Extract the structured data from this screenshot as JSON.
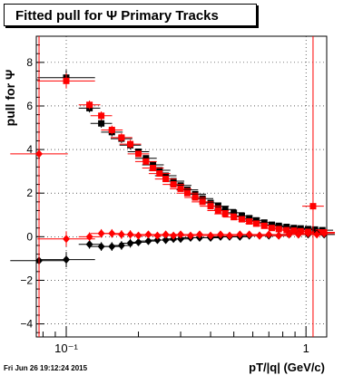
{
  "timestamp": "Fri Jun 26 19:12:24 2015",
  "chart_data": {
    "type": "scatter",
    "title": "Fitted pull for  Ψ   Primary Tracks",
    "xlabel": "pT/|q| (GeV/c)",
    "ylabel": "pull for  Ψ",
    "x_scale": "log",
    "xlim": [
      0.075,
      1.22
    ],
    "ylim": [
      -4.6,
      9.2
    ],
    "y_ticks": [
      -4,
      -2,
      0,
      2,
      4,
      6,
      8
    ],
    "x_tick_labels": [
      {
        "x": 0.1,
        "label": "10⁻¹"
      },
      {
        "x": 1,
        "label": "1"
      }
    ],
    "grid": true,
    "colors": {
      "black": "#000000",
      "red": "#ff0000"
    },
    "series": [
      {
        "color": "black",
        "marker": "square",
        "points": [
          [
            0.1,
            7.3
          ],
          [
            0.125,
            5.9
          ],
          [
            0.14,
            5.2
          ],
          [
            0.155,
            4.8
          ],
          [
            0.17,
            4.5
          ],
          [
            0.185,
            4.2
          ],
          [
            0.2,
            3.9
          ],
          [
            0.215,
            3.6
          ],
          [
            0.23,
            3.3
          ],
          [
            0.245,
            3.05
          ],
          [
            0.26,
            2.8
          ],
          [
            0.28,
            2.55
          ],
          [
            0.3,
            2.35
          ],
          [
            0.32,
            2.15
          ],
          [
            0.345,
            1.95
          ],
          [
            0.37,
            1.75
          ],
          [
            0.4,
            1.55
          ],
          [
            0.43,
            1.4
          ],
          [
            0.46,
            1.25
          ],
          [
            0.5,
            1.1
          ],
          [
            0.54,
            0.95
          ],
          [
            0.58,
            0.85
          ],
          [
            0.62,
            0.75
          ],
          [
            0.67,
            0.65
          ],
          [
            0.72,
            0.55
          ],
          [
            0.77,
            0.5
          ],
          [
            0.83,
            0.45
          ],
          [
            0.89,
            0.4
          ],
          [
            0.95,
            0.38
          ],
          [
            1.02,
            0.35
          ],
          [
            1.09,
            0.33
          ],
          [
            1.17,
            0.3
          ]
        ]
      },
      {
        "color": "red",
        "marker": "square",
        "points": [
          [
            0.1,
            7.15
          ],
          [
            0.125,
            6.05
          ],
          [
            0.14,
            5.55
          ],
          [
            0.155,
            4.9
          ],
          [
            0.17,
            4.55
          ],
          [
            0.185,
            4.25
          ],
          [
            0.2,
            3.8
          ],
          [
            0.215,
            3.45
          ],
          [
            0.23,
            3.15
          ],
          [
            0.245,
            2.9
          ],
          [
            0.26,
            2.65
          ],
          [
            0.28,
            2.4
          ],
          [
            0.3,
            2.2
          ],
          [
            0.32,
            2.0
          ],
          [
            0.345,
            1.8
          ],
          [
            0.37,
            1.6
          ],
          [
            0.4,
            1.4
          ],
          [
            0.43,
            1.2
          ],
          [
            0.46,
            1.05
          ],
          [
            0.5,
            0.9
          ],
          [
            0.54,
            0.8
          ],
          [
            0.58,
            0.7
          ],
          [
            0.62,
            0.6
          ],
          [
            0.67,
            0.5
          ],
          [
            0.72,
            0.4
          ],
          [
            0.77,
            0.35
          ],
          [
            0.83,
            0.3
          ],
          [
            0.89,
            0.28
          ],
          [
            0.95,
            0.25
          ],
          [
            1.02,
            0.22
          ],
          [
            1.07,
            1.4
          ],
          [
            1.13,
            0.2
          ],
          [
            1.19,
            0.2
          ]
        ]
      },
      {
        "color": "black",
        "marker": "diamond",
        "points": [
          [
            0.077,
            -1.1
          ],
          [
            0.1,
            -1.05
          ],
          [
            0.125,
            -0.35
          ],
          [
            0.14,
            -0.45
          ],
          [
            0.155,
            -0.45
          ],
          [
            0.17,
            -0.4
          ],
          [
            0.185,
            -0.3
          ],
          [
            0.2,
            -0.25
          ],
          [
            0.22,
            -0.2
          ],
          [
            0.24,
            -0.15
          ],
          [
            0.26,
            -0.15
          ],
          [
            0.28,
            -0.1
          ],
          [
            0.3,
            -0.1
          ],
          [
            0.33,
            -0.05
          ],
          [
            0.36,
            -0.05
          ],
          [
            0.4,
            -0.05
          ],
          [
            0.44,
            0.0
          ],
          [
            0.48,
            0.0
          ],
          [
            0.53,
            0.0
          ],
          [
            0.58,
            0.05
          ],
          [
            0.64,
            0.05
          ],
          [
            0.7,
            0.05
          ],
          [
            0.77,
            0.05
          ],
          [
            0.85,
            0.1
          ],
          [
            0.93,
            0.1
          ],
          [
            1.02,
            0.1
          ],
          [
            1.11,
            0.15
          ],
          [
            1.19,
            0.1
          ]
        ]
      },
      {
        "color": "red",
        "marker": "diamond",
        "points": [
          [
            0.077,
            3.8
          ],
          [
            0.1,
            -0.1
          ],
          [
            0.125,
            0.0
          ],
          [
            0.14,
            0.15
          ],
          [
            0.155,
            0.15
          ],
          [
            0.17,
            0.1
          ],
          [
            0.185,
            0.1
          ],
          [
            0.2,
            0.05
          ],
          [
            0.22,
            0.1
          ],
          [
            0.24,
            0.05
          ],
          [
            0.26,
            0.1
          ],
          [
            0.28,
            0.05
          ],
          [
            0.3,
            0.1
          ],
          [
            0.33,
            0.05
          ],
          [
            0.36,
            0.1
          ],
          [
            0.4,
            0.05
          ],
          [
            0.44,
            0.1
          ],
          [
            0.48,
            0.05
          ],
          [
            0.53,
            0.1
          ],
          [
            0.58,
            0.1
          ],
          [
            0.64,
            0.05
          ],
          [
            0.7,
            0.1
          ],
          [
            0.77,
            0.05
          ],
          [
            0.85,
            0.1
          ],
          [
            0.93,
            0.1
          ],
          [
            1.02,
            0.15
          ],
          [
            1.11,
            0.1
          ],
          [
            1.19,
            0.15
          ]
        ]
      }
    ]
  }
}
